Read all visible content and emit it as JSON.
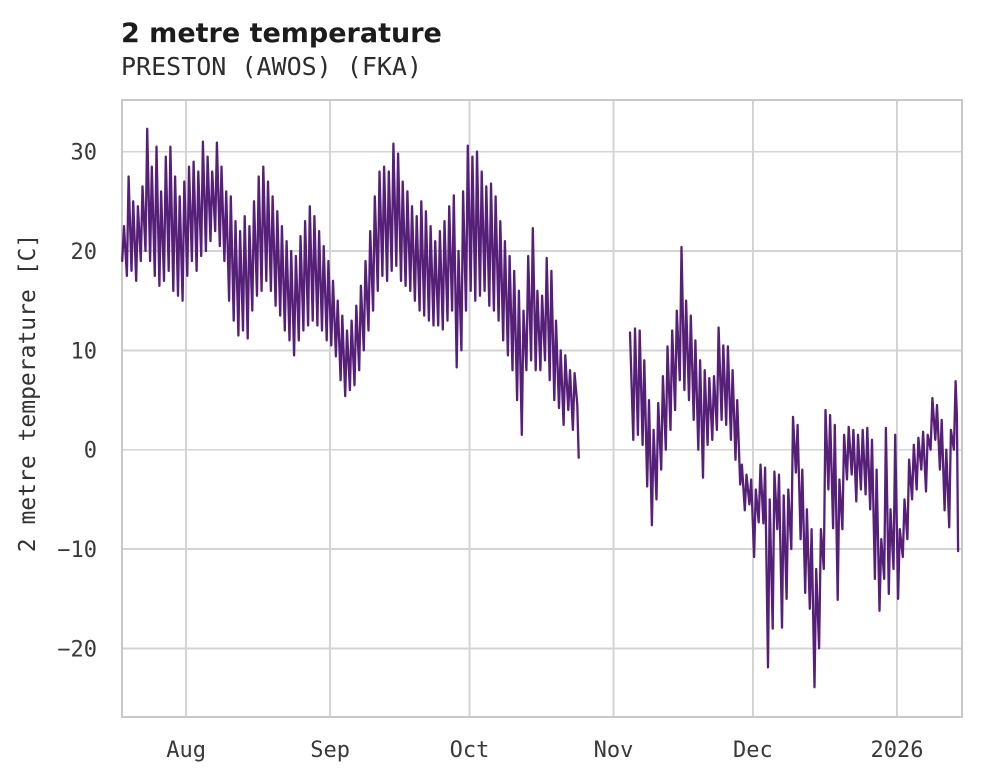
{
  "chart_data": {
    "type": "line",
    "title": "2 metre temperature",
    "subtitle": "PRESTON (AWOS) (FKA)",
    "ylabel": "2 metre temperature [C]",
    "xlabel": "",
    "x_unit": "days since 2025-07-18 (hourly 2 m temperature trace)",
    "grid": true,
    "legend": "none",
    "line_color": "#562078",
    "grid_color": "#d4d4d4",
    "border_color": "#c8c8c8",
    "xlim": [
      0.2,
      181.0
    ],
    "ylim": [
      -26.9,
      35.2
    ],
    "x_ticks": [
      {
        "day": 14,
        "label": "Aug"
      },
      {
        "day": 45,
        "label": "Sep"
      },
      {
        "day": 75,
        "label": "Oct"
      },
      {
        "day": 106,
        "label": "Nov"
      },
      {
        "day": 136,
        "label": "Dec"
      },
      {
        "day": 167,
        "label": "2026"
      }
    ],
    "y_ticks": [
      {
        "value": 30,
        "label": "30"
      },
      {
        "value": 20,
        "label": "20"
      },
      {
        "value": 10,
        "label": "10"
      },
      {
        "value": 0,
        "label": "0"
      },
      {
        "value": -10,
        "label": "−10"
      },
      {
        "value": -20,
        "label": "−20"
      }
    ],
    "series": {
      "name": "2 metre temperature [C]",
      "note": "daily [day-index, low, high] envelope; gap Oct 24 - Nov 4",
      "segments": [
        {
          "days": [
            [
              0,
              19,
              22.5
            ],
            [
              1,
              17.5,
              27.5
            ],
            [
              2,
              18,
              25
            ],
            [
              3,
              17,
              24.5
            ],
            [
              4,
              19,
              26.5
            ],
            [
              5,
              20,
              32.3
            ],
            [
              6,
              19,
              28.5
            ],
            [
              7,
              17.5,
              30.5
            ],
            [
              8,
              16.5,
              26
            ],
            [
              9,
              17,
              29.5
            ],
            [
              10,
              18,
              30.5
            ],
            [
              11,
              16,
              27.5
            ],
            [
              12,
              15.5,
              25.5
            ],
            [
              13,
              15,
              27
            ],
            [
              14,
              17.5,
              28.5
            ],
            [
              15,
              19,
              29
            ],
            [
              16,
              18,
              28
            ],
            [
              17,
              19.5,
              31
            ],
            [
              18,
              20,
              29.5
            ],
            [
              19,
              21,
              28
            ],
            [
              20,
              22,
              30.9
            ],
            [
              21,
              20.5,
              28.5
            ],
            [
              22,
              19,
              26
            ],
            [
              23,
              15,
              25.5
            ],
            [
              24,
              13,
              23
            ],
            [
              25,
              11.5,
              22
            ],
            [
              26,
              12,
              23.5
            ],
            [
              27,
              11.2,
              22.5
            ],
            [
              28,
              14,
              25
            ],
            [
              29,
              15.5,
              27.5
            ],
            [
              30,
              16,
              28.5
            ],
            [
              31,
              17,
              27
            ],
            [
              32,
              16,
              25.5
            ],
            [
              33,
              14.5,
              24
            ],
            [
              34,
              13.5,
              22.5
            ],
            [
              35,
              12,
              21
            ],
            [
              36,
              11,
              20
            ],
            [
              37,
              9.5,
              19.5
            ],
            [
              38,
              11,
              21.5
            ],
            [
              39,
              12,
              23
            ],
            [
              40,
              12.5,
              24.5
            ],
            [
              41,
              13,
              23.5
            ],
            [
              42,
              12.5,
              22
            ],
            [
              43,
              12,
              20.5
            ],
            [
              44,
              11,
              19
            ],
            [
              45,
              10.5,
              17
            ],
            [
              46,
              9.4,
              15
            ],
            [
              47,
              7,
              13.5
            ],
            [
              48,
              5.4,
              12
            ],
            [
              49,
              6,
              13
            ],
            [
              50,
              6.5,
              14.5
            ],
            [
              51,
              8,
              16.5
            ],
            [
              52,
              10,
              19
            ],
            [
              53,
              12,
              22
            ],
            [
              54,
              14,
              25.5
            ],
            [
              55,
              16,
              28
            ],
            [
              56,
              17.5,
              28.5
            ],
            [
              57,
              17,
              28
            ],
            [
              58,
              18,
              30.8
            ],
            [
              59,
              18.5,
              29.8
            ],
            [
              60,
              17,
              27
            ],
            [
              61,
              16.5,
              26
            ],
            [
              62,
              16,
              24.5
            ],
            [
              63,
              15,
              23.5
            ],
            [
              64,
              14,
              25
            ],
            [
              65,
              13.5,
              24
            ],
            [
              66,
              13,
              22.5
            ],
            [
              67,
              12.5,
              21
            ],
            [
              68,
              12.5,
              22
            ],
            [
              69,
              12.1,
              23
            ],
            [
              70,
              13,
              24.5
            ],
            [
              71,
              14,
              25.6
            ],
            [
              72,
              8.3,
              20
            ],
            [
              73,
              10,
              26
            ],
            [
              74,
              14,
              30.6
            ],
            [
              75,
              16,
              29.5
            ],
            [
              76,
              15,
              30
            ],
            [
              77,
              15.5,
              28
            ],
            [
              78,
              16,
              26.5
            ],
            [
              79,
              14.5,
              26.8
            ],
            [
              80,
              14,
              25.5
            ],
            [
              81,
              13,
              23
            ],
            [
              82,
              11,
              21
            ],
            [
              83,
              9.5,
              19.5
            ],
            [
              84,
              8,
              18
            ],
            [
              85,
              5,
              16
            ],
            [
              86,
              1.5,
              14
            ],
            [
              87,
              8,
              19.5
            ],
            [
              88,
              9,
              22.3
            ],
            [
              89,
              8,
              16
            ],
            [
              90,
              8,
              15.5
            ],
            [
              91,
              9,
              19.3
            ],
            [
              92,
              7,
              18
            ],
            [
              93,
              5,
              13
            ],
            [
              94,
              4.2,
              10
            ],
            [
              95,
              2.5,
              9.5
            ],
            [
              96,
              4,
              8
            ],
            [
              97,
              2,
              7.7
            ]
          ],
          "end_points": [
            [
              98.2,
              4.5
            ],
            [
              98.5,
              -0.8
            ]
          ]
        },
        {
          "start_points": [
            [
              109.55,
              11.8
            ]
          ],
          "days": [
            [
              110,
              1,
              12.2
            ],
            [
              111,
              1.5,
              12
            ],
            [
              112,
              0.5,
              9
            ],
            [
              113,
              -3.7,
              5
            ],
            [
              114,
              -7.6,
              2
            ],
            [
              115,
              -5,
              4.7
            ],
            [
              116,
              -2,
              7.4
            ],
            [
              117,
              0,
              10.4
            ],
            [
              118,
              2,
              12
            ],
            [
              119,
              4,
              14
            ],
            [
              120,
              7,
              20.4
            ],
            [
              121,
              6,
              15
            ],
            [
              122,
              5,
              13.5
            ],
            [
              123,
              3,
              11
            ],
            [
              124,
              0,
              9
            ],
            [
              125,
              -2.8,
              8
            ],
            [
              126,
              0.5,
              7.2
            ],
            [
              127,
              1,
              7.4
            ],
            [
              128,
              2,
              12.3
            ],
            [
              129,
              3,
              10.5
            ],
            [
              130,
              2.5,
              10.4
            ],
            [
              131,
              1,
              8
            ],
            [
              132,
              -1,
              5
            ],
            [
              133,
              -3.5,
              -1.5
            ],
            [
              134,
              -6.1,
              -2.5
            ],
            [
              135,
              -5.5,
              -3
            ],
            [
              136,
              -10.8,
              -4
            ],
            [
              137,
              -7.3,
              -1.5
            ],
            [
              138,
              -7.4,
              -1.8
            ],
            [
              139,
              -21.9,
              -5
            ],
            [
              140,
              -18,
              -2.2
            ],
            [
              141,
              -8,
              -2.5
            ],
            [
              142,
              -17.9,
              -4.6
            ],
            [
              143,
              -15,
              -4
            ],
            [
              144,
              -10,
              3.3
            ],
            [
              145,
              -2.3,
              2.5
            ],
            [
              146,
              -9,
              -2
            ],
            [
              147,
              -14.4,
              -6
            ],
            [
              148,
              -16,
              -8
            ],
            [
              149,
              -23.9,
              -12
            ],
            [
              150,
              -20,
              -8
            ],
            [
              151,
              -12,
              4
            ],
            [
              152,
              -4,
              3.5
            ],
            [
              153,
              -7.9,
              2.5
            ],
            [
              154,
              -15.1,
              -3
            ],
            [
              155,
              -8,
              1.5
            ],
            [
              156,
              -3,
              2.3
            ],
            [
              157,
              -2.5,
              2
            ],
            [
              158,
              -5.2,
              1.5
            ],
            [
              159,
              -4,
              2
            ],
            [
              160,
              -4.5,
              2.2
            ],
            [
              161,
              -6,
              1
            ],
            [
              162,
              -13,
              -2
            ],
            [
              163,
              -16.2,
              -9
            ],
            [
              164,
              -13,
              2.2
            ],
            [
              165,
              -14.5,
              -6
            ],
            [
              166,
              -12,
              1.5
            ],
            [
              167,
              -15,
              -8
            ],
            [
              168,
              -10.8,
              -5
            ],
            [
              169,
              -9,
              -1
            ],
            [
              170,
              -5,
              0.5
            ],
            [
              171,
              -4,
              1.2
            ],
            [
              172,
              -2,
              1.8
            ],
            [
              173,
              -4.2,
              1.5
            ],
            [
              174,
              0,
              5.2
            ],
            [
              175,
              1,
              4.5
            ],
            [
              176,
              -2,
              3
            ],
            [
              177,
              -6.1,
              0
            ],
            [
              178,
              -7.8,
              2
            ],
            [
              179,
              0,
              6.9
            ]
          ],
          "end_points": [
            [
              179.9,
              3.5
            ],
            [
              180.15,
              -10.2
            ]
          ]
        }
      ]
    }
  }
}
